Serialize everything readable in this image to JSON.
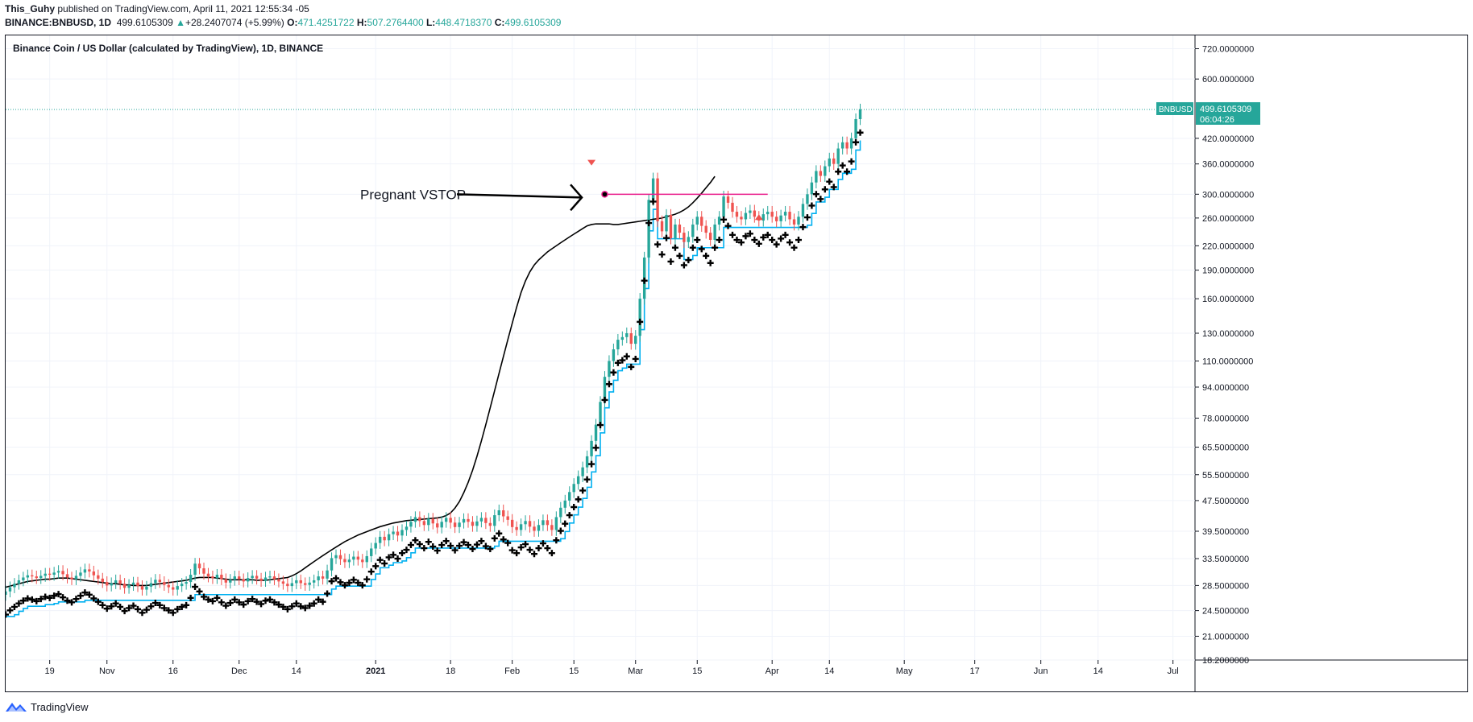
{
  "header": {
    "author": "This_Guhy",
    "published_text": " published on TradingView.com, April 11, 2021 12:55:34 -05",
    "symbol_line": "BINANCE:BNBUSD, 1D",
    "last_price": "499.6105309",
    "change_arrow": "▲",
    "change": "+28.2407074 (+5.99%)",
    "o_label": "O:",
    "o_value": "471.4251722",
    "h_label": "H:",
    "h_value": "507.2764400",
    "l_label": "L:",
    "l_value": "448.4718370",
    "c_label": "C:",
    "c_value": "499.6105309"
  },
  "series_title": "Binance Coin / US Dollar (calculated by TradingView), 1D, BINANCE",
  "price_badge": {
    "symbol": "BNBUSD",
    "price": "499.6105309",
    "countdown": "06:04:26"
  },
  "annotation": "Pregnant VSTOP",
  "footer": {
    "brand": "TradingView"
  },
  "colors": {
    "up": "#26a69a",
    "down": "#ef5350",
    "vstop": "#00b0f0",
    "sma": "#000000",
    "marker": "#000000",
    "pink": "#e91e8c",
    "badge": "#26a69a"
  },
  "chart_data": {
    "type": "candlestick",
    "symbol": "BNBUSD",
    "interval": "1D",
    "y_scale": "log",
    "ylim": [
      18.2,
      780
    ],
    "y_ticks": [
      "720.0000000",
      "600.0000000",
      "420.0000000",
      "360.0000000",
      "300.0000000",
      "260.0000000",
      "220.0000000",
      "190.0000000",
      "160.0000000",
      "130.0000000",
      "110.0000000",
      "94.0000000",
      "78.0000000",
      "65.5000000",
      "55.5000000",
      "47.5000000",
      "39.5000000",
      "33.5000000",
      "28.5000000",
      "24.5000000",
      "21.0000000",
      "18.2000000"
    ],
    "y_tick_values": [
      720,
      600,
      420,
      360,
      300,
      260,
      220,
      190,
      160,
      130,
      110,
      94,
      78,
      65.5,
      55.5,
      47.5,
      39.5,
      33.5,
      28.5,
      24.5,
      21.0,
      18.2
    ],
    "x_ticks": [
      {
        "label": "19",
        "date": "2020-10-19"
      },
      {
        "label": "Nov",
        "date": "2020-11-01"
      },
      {
        "label": "16",
        "date": "2020-11-16"
      },
      {
        "label": "Dec",
        "date": "2020-12-01"
      },
      {
        "label": "14",
        "date": "2020-12-14"
      },
      {
        "label": "2021",
        "date": "2021-01-01"
      },
      {
        "label": "18",
        "date": "2021-01-18"
      },
      {
        "label": "Feb",
        "date": "2021-02-01"
      },
      {
        "label": "15",
        "date": "2021-02-15"
      },
      {
        "label": "Mar",
        "date": "2021-03-01"
      },
      {
        "label": "15",
        "date": "2021-03-15"
      },
      {
        "label": "Apr",
        "date": "2021-04-01"
      },
      {
        "label": "14",
        "date": "2021-04-14"
      },
      {
        "label": "May",
        "date": "2021-05-01"
      },
      {
        "label": "17",
        "date": "2021-05-17"
      },
      {
        "label": "Jun",
        "date": "2021-06-01"
      },
      {
        "label": "14",
        "date": "2021-06-14"
      },
      {
        "label": "Jul",
        "date": "2021-07-01"
      }
    ],
    "x_range": [
      "2020-10-09",
      "2021-07-06"
    ],
    "grid": true,
    "current_price": 499.6105309,
    "close_series": {
      "start": "2020-10-09",
      "values": [
        27.5,
        28.2,
        28.8,
        29.4,
        29.9,
        30.3,
        30.1,
        29.8,
        30.2,
        30.6,
        30.4,
        30.8,
        31.1,
        30.5,
        29.9,
        29.6,
        30.2,
        30.8,
        31.4,
        31.0,
        30.3,
        29.7,
        29.1,
        28.5,
        28.9,
        29.4,
        28.8,
        28.1,
        28.6,
        29.0,
        28.4,
        27.8,
        28.3,
        28.9,
        29.5,
        29.1,
        28.6,
        28.2,
        27.8,
        28.4,
        28.8,
        29.1,
        30.4,
        32.5,
        31.6,
        30.6,
        30.1,
        29.8,
        30.4,
        29.6,
        29.0,
        29.5,
        30.1,
        29.6,
        29.2,
        29.8,
        30.2,
        29.7,
        29.3,
        29.9,
        30.1,
        29.6,
        29.2,
        28.8,
        28.4,
        28.9,
        29.4,
        28.9,
        28.6,
        29.0,
        29.4,
        30.1,
        29.7,
        31.2,
        33.6,
        34.2,
        33.4,
        32.8,
        33.3,
        33.9,
        33.3,
        32.8,
        34.0,
        35.6,
        36.8,
        38.2,
        37.4,
        38.8,
        39.4,
        38.5,
        39.8,
        40.6,
        41.8,
        43.0,
        42.0,
        41.0,
        42.6,
        41.4,
        40.4,
        41.8,
        42.8,
        41.6,
        40.5,
        41.6,
        42.5,
        41.8,
        40.8,
        41.9,
        42.8,
        41.5,
        40.8,
        43.5,
        44.8,
        43.2,
        42.3,
        40.5,
        39.8,
        41.2,
        42.0,
        40.6,
        39.6,
        41.0,
        42.2,
        41.0,
        39.8,
        43.0,
        45.5,
        47.5,
        50.0,
        52.5,
        55.0,
        58.0,
        62.0,
        68.0,
        75.0,
        86.0,
        100.0,
        110.0,
        118.0,
        125.0,
        127.0,
        130.0,
        122.0,
        128.0,
        160.0,
        205.0,
        290.0,
        330.0,
        255.0,
        240.0,
        265.0,
        230.0,
        250.0,
        238.0,
        225.0,
        232.0,
        250.0,
        262.0,
        248.0,
        238.0,
        228.0,
        250.0,
        262.0,
        296.0,
        285.0,
        270.0,
        262.0,
        258.0,
        268.0,
        272.0,
        262.0,
        256.0,
        266.0,
        270.0,
        262.0,
        255.0,
        264.0,
        270.0,
        258.0,
        250.0,
        262.0,
        283.0,
        300.0,
        322.0,
        345.0,
        335.0,
        355.0,
        372.0,
        360.0,
        395.0,
        410.0,
        395.0,
        420.0,
        471.4,
        499.6
      ]
    },
    "sma_series": {
      "start": "2020-10-09",
      "values": [
        28.2,
        28.4,
        28.6,
        28.8,
        29.0,
        29.2,
        29.3,
        29.4,
        29.5,
        29.6,
        29.6,
        29.7,
        29.8,
        29.8,
        29.8,
        29.7,
        29.6,
        29.5,
        29.4,
        29.3,
        29.2,
        29.1,
        29.0,
        28.9,
        28.8,
        28.8,
        28.7,
        28.6,
        28.6,
        28.5,
        28.5,
        28.5,
        28.5,
        28.6,
        28.7,
        28.8,
        28.9,
        29.0,
        29.1,
        29.2,
        29.3,
        29.4,
        29.6,
        29.8,
        29.9,
        29.9,
        29.9,
        29.9,
        29.8,
        29.7,
        29.6,
        29.5,
        29.5,
        29.5,
        29.5,
        29.5,
        29.5,
        29.4,
        29.4,
        29.4,
        29.5,
        29.6,
        29.7,
        29.8,
        29.9,
        30.2,
        30.6,
        31.1,
        31.7,
        32.3,
        32.9,
        33.5,
        34.1,
        34.7,
        35.3,
        35.9,
        36.5,
        37.1,
        37.6,
        38.1,
        38.6,
        39.0,
        39.4,
        39.8,
        40.2,
        40.6,
        40.9,
        41.2,
        41.5,
        41.7,
        41.9,
        42.1,
        42.2,
        42.3,
        42.4,
        42.5,
        42.6,
        42.7,
        42.8,
        43.0,
        43.4,
        44.1,
        45.4,
        47.2,
        49.8,
        53.0,
        57.0,
        62.0,
        68.0,
        75.0,
        83.0,
        92.0,
        102.0,
        113.0,
        125.0,
        138.0,
        152.0,
        166.0,
        178.0,
        188.0,
        196.0,
        202.0,
        207.0,
        212.0,
        216.0,
        220.0,
        224.0,
        228.0,
        232.0,
        236.0,
        240.0,
        244.0,
        248.0,
        250.0,
        251.0,
        251.0,
        251.0,
        251.0,
        250.0,
        250.0,
        251.0,
        252.0,
        253.0,
        254.0,
        255.0,
        256.0,
        257.0,
        258.0,
        259.0,
        260.0,
        262.0,
        264.0,
        266.0,
        269.0,
        273.0,
        278.0,
        285.0,
        293.0,
        302.0,
        312.0,
        322.0,
        334.0
      ]
    }
  }
}
